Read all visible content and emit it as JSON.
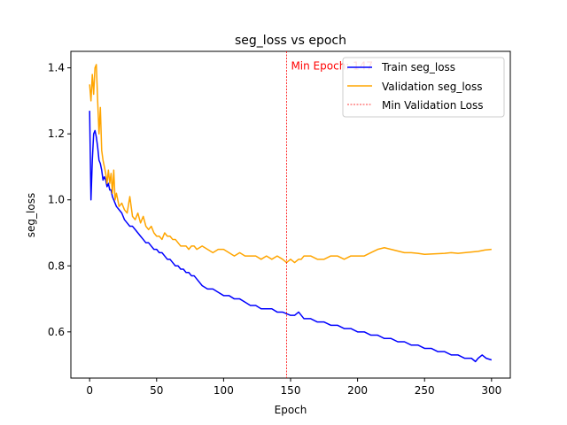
{
  "chart_data": {
    "type": "line",
    "title": "seg_loss vs epoch",
    "xlabel": "Epoch",
    "ylabel": "seg_loss",
    "xlim": [
      -14,
      314
    ],
    "ylim": [
      0.46,
      1.45
    ],
    "xticks": [
      0,
      50,
      100,
      150,
      200,
      250,
      300
    ],
    "yticks": [
      0.6,
      0.8,
      1.0,
      1.2,
      1.4
    ],
    "grid": false,
    "legend_position": "top-right",
    "annotation": {
      "text": "Min Epoch: 147",
      "color": "#ff0000"
    },
    "vline": {
      "x": 147,
      "label": "Min Validation Loss",
      "color": "#ff0000"
    },
    "series": [
      {
        "name": "Train seg_loss",
        "color": "#0000ff",
        "x": [
          0,
          1,
          2,
          3,
          4,
          5,
          6,
          7,
          8,
          9,
          10,
          11,
          12,
          13,
          14,
          15,
          16,
          17,
          18,
          19,
          20,
          22,
          24,
          26,
          28,
          30,
          32,
          34,
          36,
          38,
          40,
          42,
          44,
          46,
          48,
          50,
          52,
          54,
          56,
          58,
          60,
          62,
          64,
          66,
          68,
          70,
          72,
          74,
          76,
          78,
          80,
          84,
          88,
          92,
          96,
          100,
          104,
          108,
          112,
          116,
          120,
          124,
          128,
          132,
          136,
          140,
          144,
          147,
          150,
          153,
          156,
          158,
          160,
          165,
          170,
          175,
          180,
          185,
          190,
          195,
          200,
          205,
          210,
          215,
          220,
          225,
          230,
          235,
          240,
          245,
          250,
          255,
          260,
          265,
          270,
          275,
          280,
          285,
          288,
          290,
          293,
          296,
          300
        ],
        "y": [
          1.27,
          1.0,
          1.12,
          1.2,
          1.21,
          1.19,
          1.16,
          1.12,
          1.11,
          1.09,
          1.06,
          1.07,
          1.06,
          1.04,
          1.05,
          1.03,
          1.03,
          1.01,
          1.0,
          0.99,
          0.98,
          0.97,
          0.96,
          0.94,
          0.93,
          0.92,
          0.92,
          0.91,
          0.9,
          0.89,
          0.88,
          0.87,
          0.87,
          0.86,
          0.85,
          0.85,
          0.84,
          0.84,
          0.83,
          0.82,
          0.82,
          0.81,
          0.8,
          0.8,
          0.79,
          0.79,
          0.78,
          0.78,
          0.77,
          0.77,
          0.76,
          0.74,
          0.73,
          0.73,
          0.72,
          0.71,
          0.71,
          0.7,
          0.7,
          0.69,
          0.68,
          0.68,
          0.67,
          0.67,
          0.67,
          0.66,
          0.66,
          0.655,
          0.65,
          0.65,
          0.66,
          0.65,
          0.64,
          0.64,
          0.63,
          0.63,
          0.62,
          0.62,
          0.61,
          0.61,
          0.6,
          0.6,
          0.59,
          0.59,
          0.58,
          0.58,
          0.57,
          0.57,
          0.56,
          0.56,
          0.55,
          0.55,
          0.54,
          0.54,
          0.53,
          0.53,
          0.52,
          0.52,
          0.51,
          0.52,
          0.53,
          0.52,
          0.515
        ]
      },
      {
        "name": "Validation seg_loss",
        "color": "#ffa500",
        "x": [
          0,
          1,
          2,
          3,
          4,
          5,
          6,
          7,
          8,
          9,
          10,
          11,
          12,
          13,
          14,
          15,
          16,
          17,
          18,
          19,
          20,
          22,
          24,
          26,
          28,
          30,
          32,
          34,
          36,
          38,
          40,
          42,
          44,
          46,
          48,
          50,
          52,
          54,
          56,
          58,
          60,
          62,
          64,
          66,
          68,
          70,
          72,
          74,
          76,
          78,
          80,
          84,
          88,
          92,
          96,
          100,
          104,
          108,
          112,
          116,
          120,
          124,
          128,
          132,
          136,
          140,
          144,
          147,
          150,
          153,
          156,
          158,
          160,
          165,
          170,
          175,
          180,
          185,
          190,
          195,
          200,
          205,
          210,
          215,
          220,
          225,
          230,
          235,
          240,
          245,
          250,
          255,
          260,
          265,
          270,
          275,
          280,
          285,
          290,
          295,
          300
        ],
        "y": [
          1.35,
          1.3,
          1.38,
          1.32,
          1.4,
          1.41,
          1.3,
          1.2,
          1.28,
          1.15,
          1.12,
          1.1,
          1.08,
          1.05,
          1.09,
          1.05,
          1.08,
          1.02,
          1.09,
          1.0,
          1.02,
          0.98,
          0.99,
          0.97,
          0.96,
          1.01,
          0.95,
          0.94,
          0.96,
          0.93,
          0.95,
          0.92,
          0.91,
          0.92,
          0.9,
          0.89,
          0.89,
          0.88,
          0.9,
          0.89,
          0.89,
          0.88,
          0.88,
          0.87,
          0.86,
          0.86,
          0.86,
          0.85,
          0.86,
          0.86,
          0.85,
          0.86,
          0.85,
          0.84,
          0.85,
          0.85,
          0.84,
          0.83,
          0.84,
          0.83,
          0.83,
          0.83,
          0.82,
          0.83,
          0.82,
          0.83,
          0.82,
          0.81,
          0.82,
          0.81,
          0.82,
          0.82,
          0.83,
          0.83,
          0.82,
          0.82,
          0.83,
          0.83,
          0.82,
          0.83,
          0.83,
          0.83,
          0.84,
          0.85,
          0.855,
          0.85,
          0.845,
          0.84,
          0.84,
          0.838,
          0.835,
          0.836,
          0.837,
          0.838,
          0.84,
          0.838,
          0.84,
          0.842,
          0.844,
          0.848,
          0.85
        ]
      }
    ]
  }
}
